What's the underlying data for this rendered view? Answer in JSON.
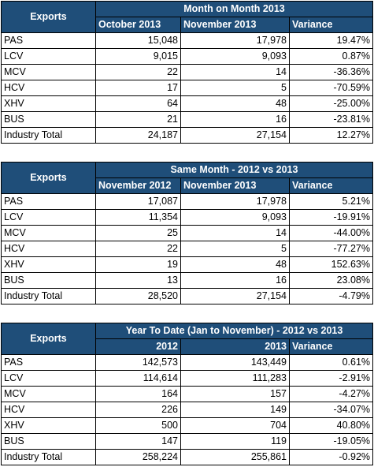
{
  "tables": [
    {
      "row_header": "Exports",
      "group_header": "Month on Month 2013",
      "columns": [
        "October 2013",
        "November 2013",
        "Variance"
      ],
      "rows": [
        {
          "label": "PAS",
          "a": "15,048",
          "b": "17,978",
          "v": "19.47%"
        },
        {
          "label": "LCV",
          "a": "9,015",
          "b": "9,093",
          "v": "0.87%"
        },
        {
          "label": "MCV",
          "a": "22",
          "b": "14",
          "v": "-36.36%"
        },
        {
          "label": "HCV",
          "a": "17",
          "b": "5",
          "v": "-70.59%"
        },
        {
          "label": "XHV",
          "a": "64",
          "b": "48",
          "v": "-25.00%"
        },
        {
          "label": "BUS",
          "a": "21",
          "b": "16",
          "v": "-23.81%"
        },
        {
          "label": "Industry Total",
          "a": "24,187",
          "b": "27,154",
          "v": "12.27%"
        }
      ]
    },
    {
      "row_header": "Exports",
      "group_header": "Same Month - 2012 vs 2013",
      "columns": [
        "November 2012",
        "November 2013",
        "Variance"
      ],
      "rows": [
        {
          "label": "PAS",
          "a": "17,087",
          "b": "17,978",
          "v": "5.21%"
        },
        {
          "label": "LCV",
          "a": "11,354",
          "b": "9,093",
          "v": "-19.91%"
        },
        {
          "label": "MCV",
          "a": "25",
          "b": "14",
          "v": "-44.00%"
        },
        {
          "label": "HCV",
          "a": "22",
          "b": "5",
          "v": "-77.27%"
        },
        {
          "label": "XHV",
          "a": "19",
          "b": "48",
          "v": "152.63%"
        },
        {
          "label": "BUS",
          "a": "13",
          "b": "16",
          "v": "23.08%"
        },
        {
          "label": "Industry Total",
          "a": "28,520",
          "b": "27,154",
          "v": "-4.79%"
        }
      ]
    },
    {
      "row_header": "Exports",
      "group_header": "Year To Date (Jan to November) - 2012 vs 2013",
      "columns": [
        "2012",
        "2013",
        "Variance"
      ],
      "rows": [
        {
          "label": "PAS",
          "a": "142,573",
          "b": "143,449",
          "v": "0.61%"
        },
        {
          "label": "LCV",
          "a": "114,614",
          "b": "111,283",
          "v": "-2.91%"
        },
        {
          "label": "MCV",
          "a": "164",
          "b": "157",
          "v": "-4.27%"
        },
        {
          "label": "HCV",
          "a": "226",
          "b": "149",
          "v": "-34.07%"
        },
        {
          "label": "XHV",
          "a": "500",
          "b": "704",
          "v": "40.80%"
        },
        {
          "label": "BUS",
          "a": "147",
          "b": "119",
          "v": "-19.05%"
        },
        {
          "label": "Industry Total",
          "a": "258,224",
          "b": "255,861",
          "v": "-0.92%"
        }
      ]
    }
  ],
  "colors": {
    "header_background": "#1f4e79",
    "header_text": "#ffffff",
    "border": "#000000"
  }
}
